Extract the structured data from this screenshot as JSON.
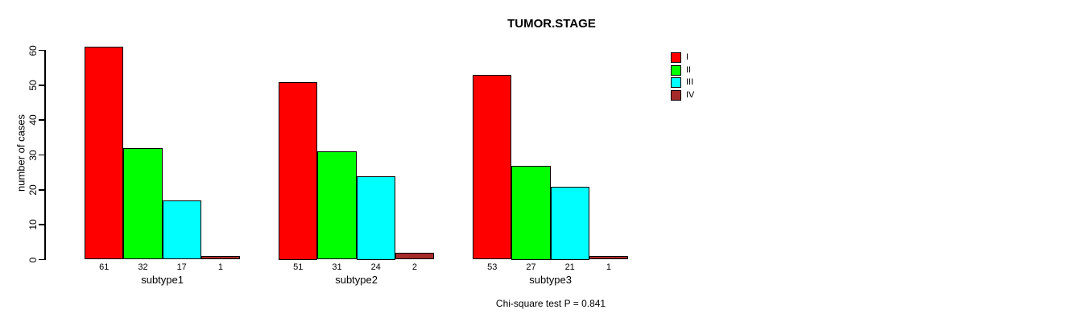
{
  "chart_data": {
    "type": "bar",
    "title": "TUMOR.STAGE",
    "xlabel": "",
    "ylabel": "number of cases",
    "ylim": [
      0,
      60
    ],
    "yticks": [
      0,
      10,
      20,
      30,
      40,
      50,
      60
    ],
    "categories": [
      "subtype1",
      "subtype2",
      "subtype3"
    ],
    "series": [
      {
        "name": "I",
        "color": "#FF0000",
        "values": [
          61,
          51,
          53
        ]
      },
      {
        "name": "II",
        "color": "#00FF00",
        "values": [
          32,
          31,
          27
        ]
      },
      {
        "name": "III",
        "color": "#00FFFF",
        "values": [
          17,
          24,
          21
        ]
      },
      {
        "name": "IV",
        "color": "#A52A2A",
        "values": [
          1,
          2,
          1
        ]
      }
    ],
    "bar_value_labels": [
      [
        "61",
        "32",
        "17",
        "1"
      ],
      [
        "51",
        "31",
        "24",
        "2"
      ],
      [
        "53",
        "27",
        "21",
        "1"
      ]
    ],
    "grid": false,
    "legend_position": "top-right",
    "legend_labels": [
      "I",
      "II",
      "III",
      "IV"
    ],
    "annotation": "Chi-square test P = 0.841",
    "bar_edge_color": "#000000",
    "background_color": "#FFFFFF"
  }
}
